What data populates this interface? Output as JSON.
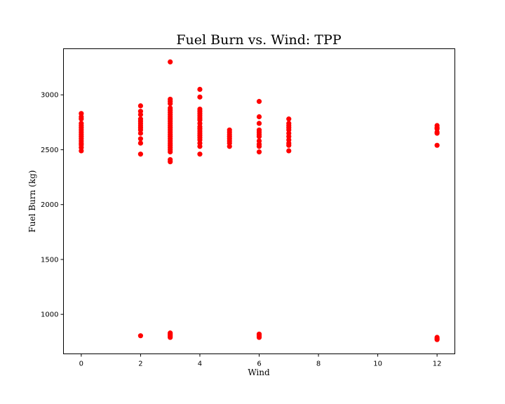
{
  "chart_data": {
    "type": "scatter",
    "title": "Fuel Burn vs. Wind: TPP",
    "xlabel": "Wind",
    "ylabel": "Fuel Burn (kg)",
    "xlim": [
      -0.6,
      12.6
    ],
    "ylim": [
      640,
      3420
    ],
    "xticks": [
      0,
      2,
      4,
      6,
      8,
      10,
      12
    ],
    "yticks": [
      1000,
      1500,
      2000,
      2500,
      3000
    ],
    "grid": false,
    "marker_color": "#ff0000",
    "series": [
      {
        "points": [
          [
            0,
            2490
          ],
          [
            0,
            2520
          ],
          [
            0,
            2545
          ],
          [
            0,
            2560
          ],
          [
            0,
            2580
          ],
          [
            0,
            2600
          ],
          [
            0,
            2620
          ],
          [
            0,
            2640
          ],
          [
            0,
            2660
          ],
          [
            0,
            2680
          ],
          [
            0,
            2700
          ],
          [
            0,
            2720
          ],
          [
            0,
            2740
          ],
          [
            0,
            2780
          ],
          [
            0,
            2800
          ],
          [
            0,
            2830
          ],
          [
            2,
            805
          ],
          [
            2,
            2460
          ],
          [
            2,
            2560
          ],
          [
            2,
            2600
          ],
          [
            2,
            2650
          ],
          [
            2,
            2680
          ],
          [
            2,
            2700
          ],
          [
            2,
            2720
          ],
          [
            2,
            2740
          ],
          [
            2,
            2760
          ],
          [
            2,
            2780
          ],
          [
            2,
            2820
          ],
          [
            2,
            2850
          ],
          [
            2,
            2900
          ],
          [
            3,
            790
          ],
          [
            3,
            800
          ],
          [
            3,
            810
          ],
          [
            3,
            820
          ],
          [
            3,
            830
          ],
          [
            3,
            2390
          ],
          [
            3,
            2410
          ],
          [
            3,
            2480
          ],
          [
            3,
            2500
          ],
          [
            3,
            2520
          ],
          [
            3,
            2540
          ],
          [
            3,
            2560
          ],
          [
            3,
            2580
          ],
          [
            3,
            2600
          ],
          [
            3,
            2620
          ],
          [
            3,
            2640
          ],
          [
            3,
            2660
          ],
          [
            3,
            2680
          ],
          [
            3,
            2700
          ],
          [
            3,
            2720
          ],
          [
            3,
            2740
          ],
          [
            3,
            2760
          ],
          [
            3,
            2780
          ],
          [
            3,
            2800
          ],
          [
            3,
            2820
          ],
          [
            3,
            2840
          ],
          [
            3,
            2860
          ],
          [
            3,
            2880
          ],
          [
            3,
            2920
          ],
          [
            3,
            2940
          ],
          [
            3,
            2960
          ],
          [
            3,
            3300
          ],
          [
            4,
            2460
          ],
          [
            4,
            2530
          ],
          [
            4,
            2560
          ],
          [
            4,
            2590
          ],
          [
            4,
            2610
          ],
          [
            4,
            2630
          ],
          [
            4,
            2650
          ],
          [
            4,
            2670
          ],
          [
            4,
            2690
          ],
          [
            4,
            2710
          ],
          [
            4,
            2740
          ],
          [
            4,
            2770
          ],
          [
            4,
            2790
          ],
          [
            4,
            2810
          ],
          [
            4,
            2830
          ],
          [
            4,
            2850
          ],
          [
            4,
            2870
          ],
          [
            4,
            2980
          ],
          [
            4,
            3050
          ],
          [
            5,
            2530
          ],
          [
            5,
            2560
          ],
          [
            5,
            2580
          ],
          [
            5,
            2600
          ],
          [
            5,
            2620
          ],
          [
            5,
            2640
          ],
          [
            5,
            2660
          ],
          [
            5,
            2680
          ],
          [
            6,
            790
          ],
          [
            6,
            800
          ],
          [
            6,
            810
          ],
          [
            6,
            820
          ],
          [
            6,
            2480
          ],
          [
            6,
            2530
          ],
          [
            6,
            2550
          ],
          [
            6,
            2580
          ],
          [
            6,
            2620
          ],
          [
            6,
            2640
          ],
          [
            6,
            2660
          ],
          [
            6,
            2680
          ],
          [
            6,
            2740
          ],
          [
            6,
            2800
          ],
          [
            6,
            2940
          ],
          [
            7,
            2490
          ],
          [
            7,
            2540
          ],
          [
            7,
            2560
          ],
          [
            7,
            2590
          ],
          [
            7,
            2620
          ],
          [
            7,
            2650
          ],
          [
            7,
            2680
          ],
          [
            7,
            2700
          ],
          [
            7,
            2720
          ],
          [
            7,
            2740
          ],
          [
            7,
            2780
          ],
          [
            12,
            770
          ],
          [
            12,
            780
          ],
          [
            12,
            790
          ],
          [
            12,
            2540
          ],
          [
            12,
            2650
          ],
          [
            12,
            2660
          ],
          [
            12,
            2690
          ],
          [
            12,
            2700
          ],
          [
            12,
            2720
          ]
        ]
      }
    ]
  }
}
